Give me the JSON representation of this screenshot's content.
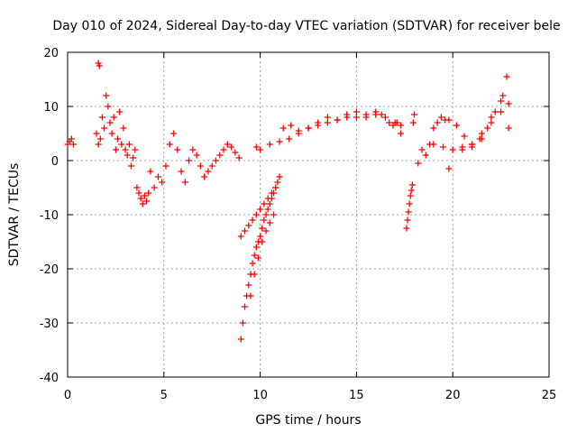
{
  "chart_data": {
    "type": "scatter",
    "title": "Day 010 of 2024, Sidereal Day-to-day VTEC variation (SDTVAR) for receiver bele",
    "xlabel": "GPS time / hours",
    "ylabel": "SDTVAR / TECUs",
    "xlim": [
      0,
      25
    ],
    "ylim": [
      -40,
      20
    ],
    "xticks": [
      "0",
      "5",
      "10",
      "15",
      "20",
      "25"
    ],
    "yticks": [
      "20",
      "10",
      "0",
      "-10",
      "-20",
      "-30",
      "-40"
    ],
    "grid": true,
    "marker": "+",
    "marker_color": "#ff0000",
    "series_segments": [
      {
        "name": "arc-1",
        "x": [
          0.0,
          0.1,
          0.2,
          0.3
        ],
        "y": [
          3.0,
          3.5,
          4.0,
          3.0
        ]
      },
      {
        "name": "arc-2",
        "x": [
          1.5,
          1.6,
          1.7,
          1.8,
          1.9,
          2.0,
          2.1,
          2.2,
          2.3,
          2.4,
          2.5,
          2.6,
          2.7,
          2.8,
          2.9,
          3.0,
          3.1,
          3.2,
          3.3,
          3.4,
          3.5,
          3.6,
          3.7,
          3.8,
          3.9,
          4.0,
          4.1,
          4.2
        ],
        "y": [
          5.0,
          3.0,
          4.0,
          8.0,
          6.0,
          12.0,
          10.0,
          7.0,
          5.0,
          8.0,
          2.0,
          4.0,
          9.0,
          3.0,
          6.0,
          2.0,
          1.0,
          3.0,
          -1.0,
          0.5,
          2.0,
          -5.0,
          -6.0,
          -7.0,
          -8.0,
          -6.5,
          -7.5,
          -6.0
        ]
      },
      {
        "name": "arc-3",
        "x": [
          1.6,
          1.65
        ],
        "y": [
          18.0,
          17.5
        ]
      },
      {
        "name": "arc-4",
        "x": [
          4.3,
          4.5,
          4.7,
          4.9,
          5.1,
          5.3,
          5.5,
          5.7,
          5.9,
          6.1,
          6.3,
          6.5,
          6.7,
          6.9,
          7.1,
          7.3,
          7.5,
          7.7,
          7.9,
          8.1,
          8.3,
          8.5,
          8.7,
          8.9
        ],
        "y": [
          -2.0,
          -5.0,
          -3.0,
          -4.0,
          -1.0,
          3.0,
          5.0,
          2.0,
          -2.0,
          -4.0,
          0.0,
          2.0,
          1.0,
          -1.0,
          -3.0,
          -2.0,
          -1.0,
          0.0,
          1.0,
          2.0,
          3.0,
          2.5,
          1.5,
          0.5
        ]
      },
      {
        "name": "arc-5",
        "x": [
          9.0,
          9.1,
          9.2,
          9.3,
          9.4,
          9.5,
          9.6,
          9.7,
          9.8,
          9.9,
          10.0,
          10.1,
          10.2,
          10.3,
          10.4,
          10.5,
          10.6,
          10.7,
          10.8,
          10.9,
          11.0
        ],
        "y": [
          -33.0,
          -30.0,
          -27.0,
          -25.0,
          -23.0,
          -21.0,
          -19.0,
          -17.5,
          -16.0,
          -15.0,
          -14.0,
          -12.5,
          -11.0,
          -10.0,
          -9.0,
          -8.0,
          -7.0,
          -6.0,
          -5.0,
          -4.0,
          -3.0
        ]
      },
      {
        "name": "arc-6",
        "x": [
          9.0,
          9.2,
          9.4,
          9.6,
          9.8,
          10.0,
          10.2,
          10.4,
          10.6,
          10.8
        ],
        "y": [
          -14.0,
          -13.0,
          -12.0,
          -11.0,
          -10.0,
          -9.0,
          -8.0,
          -7.0,
          -6.0,
          -5.0
        ]
      },
      {
        "name": "arc-7",
        "x": [
          9.5,
          9.7,
          9.9,
          10.1,
          10.3,
          10.5,
          10.7
        ],
        "y": [
          -25.0,
          -21.0,
          -18.0,
          -15.0,
          -13.0,
          -11.5,
          -10.0
        ]
      },
      {
        "name": "arc-8",
        "x": [
          9.8,
          10.0,
          10.5,
          11.0,
          11.5,
          12.0,
          12.5,
          13.0,
          13.5,
          14.0,
          14.5,
          15.0,
          15.5,
          16.0,
          16.5,
          17.0,
          17.3
        ],
        "y": [
          2.5,
          2.0,
          3.0,
          3.5,
          4.0,
          5.0,
          6.0,
          6.5,
          7.0,
          7.5,
          8.0,
          8.0,
          8.5,
          8.5,
          8.0,
          7.0,
          6.5
        ]
      },
      {
        "name": "arc-9",
        "x": [
          11.2,
          11.6,
          12.0,
          12.5,
          13.0,
          13.5,
          14.0,
          14.5,
          15.0,
          15.5,
          16.0,
          16.3
        ],
        "y": [
          6.0,
          6.5,
          5.5,
          6.0,
          7.0,
          8.0,
          7.5,
          8.5,
          9.0,
          8.0,
          9.0,
          8.5
        ]
      },
      {
        "name": "arc-10",
        "x": [
          16.7,
          16.9,
          17.1,
          17.3
        ],
        "y": [
          7.0,
          6.5,
          7.0,
          5.0
        ]
      },
      {
        "name": "arc-11",
        "x": [
          17.6,
          17.65,
          17.7,
          17.75,
          17.8,
          17.85,
          17.9,
          17.95,
          18.0
        ],
        "y": [
          -12.5,
          -11.0,
          -9.5,
          -8.0,
          -6.5,
          -5.5,
          -4.5,
          7.0,
          8.5
        ]
      },
      {
        "name": "arc-12",
        "x": [
          18.2,
          18.4,
          18.6,
          18.8,
          19.0,
          19.2,
          19.4,
          19.6,
          19.8
        ],
        "y": [
          -0.5,
          2.0,
          1.0,
          3.0,
          6.0,
          7.0,
          8.0,
          7.5,
          -1.5
        ]
      },
      {
        "name": "arc-13",
        "x": [
          19.0,
          19.5,
          20.0,
          20.5,
          21.0,
          21.5,
          22.0,
          22.5,
          22.8
        ],
        "y": [
          3.0,
          2.5,
          2.0,
          2.5,
          3.0,
          5.0,
          8.0,
          11.0,
          15.5
        ]
      },
      {
        "name": "arc-14",
        "x": [
          19.8,
          20.2,
          20.6,
          21.0,
          21.4,
          21.8,
          22.2,
          22.6,
          22.9
        ],
        "y": [
          7.5,
          6.5,
          4.5,
          3.0,
          4.0,
          6.0,
          9.0,
          12.0,
          10.5
        ]
      },
      {
        "name": "arc-15",
        "x": [
          20.5,
          21.0,
          21.5,
          22.0,
          22.5,
          22.9
        ],
        "y": [
          2.0,
          2.5,
          4.0,
          7.0,
          9.0,
          6.0
        ]
      }
    ]
  }
}
